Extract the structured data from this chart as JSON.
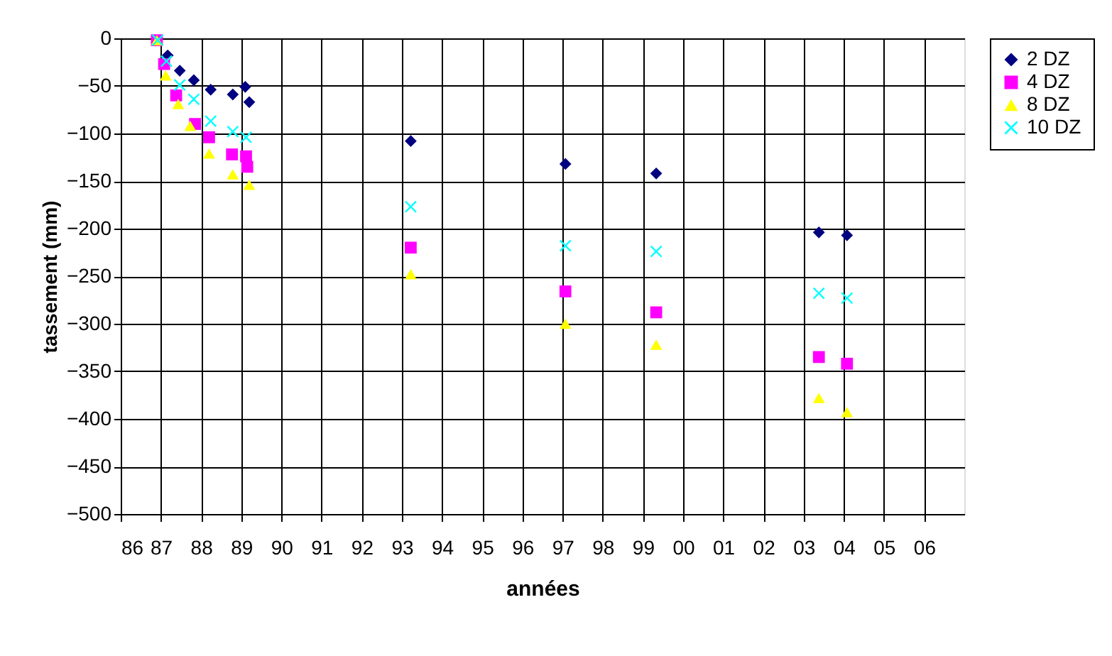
{
  "chart_data": {
    "type": "scatter",
    "xlabel": "années",
    "ylabel": "tassement (mm)",
    "xlim": [
      1986,
      2007
    ],
    "ylim": [
      -500,
      0
    ],
    "xticks": [
      {
        "value": 1986,
        "label": "86"
      },
      {
        "value": 1987,
        "label": "87"
      },
      {
        "value": 1988,
        "label": "88"
      },
      {
        "value": 1989,
        "label": "89"
      },
      {
        "value": 1990,
        "label": "90"
      },
      {
        "value": 1991,
        "label": "91"
      },
      {
        "value": 1992,
        "label": "92"
      },
      {
        "value": 1993,
        "label": "93"
      },
      {
        "value": 1994,
        "label": "94"
      },
      {
        "value": 1995,
        "label": "95"
      },
      {
        "value": 1996,
        "label": "96"
      },
      {
        "value": 1997,
        "label": "97"
      },
      {
        "value": 1998,
        "label": "98"
      },
      {
        "value": 1999,
        "label": "99"
      },
      {
        "value": 2000,
        "label": "00"
      },
      {
        "value": 2001,
        "label": "01"
      },
      {
        "value": 2002,
        "label": "02"
      },
      {
        "value": 2003,
        "label": "03"
      },
      {
        "value": 2004,
        "label": "04"
      },
      {
        "value": 2005,
        "label": "05"
      },
      {
        "value": 2006,
        "label": "06"
      }
    ],
    "yticks": [
      0,
      -50,
      -100,
      -150,
      -200,
      -250,
      -300,
      -350,
      -400,
      -450,
      -500
    ],
    "grid": true,
    "legend": "right",
    "series": [
      {
        "name": "2 DZ",
        "color": "#000080",
        "marker": "diamond",
        "x": [
          1987.17,
          1987.47,
          1987.82,
          1988.24,
          1988.79,
          1989.1,
          1989.2,
          1993.22,
          1997.07,
          1999.33,
          2003.38,
          2004.08
        ],
        "values": [
          -18,
          -34,
          -44,
          -54,
          -59,
          -51,
          -67,
          -108,
          -132,
          -142,
          -204,
          -207
        ]
      },
      {
        "name": "4 DZ",
        "color": "#ff00ff",
        "marker": "square",
        "x": [
          1986.9,
          1987.08,
          1987.38,
          1987.85,
          1988.2,
          1988.77,
          1989.12,
          1989.15,
          1993.22,
          1997.07,
          1999.33,
          2003.38,
          2004.08
        ],
        "values": [
          -2,
          -27,
          -60,
          -90,
          -104,
          -122,
          -124,
          -135,
          -220,
          -266,
          -288,
          -335,
          -342
        ]
      },
      {
        "name": "8 DZ",
        "color": "#ffff00",
        "marker": "triangle",
        "x": [
          1986.9,
          1987.12,
          1987.43,
          1987.73,
          1988.2,
          1988.79,
          1989.2,
          1993.22,
          1997.07,
          1999.33,
          2003.38,
          2004.08
        ],
        "values": [
          -2,
          -39,
          -69,
          -92,
          -121,
          -143,
          -154,
          -248,
          -300,
          -322,
          -378,
          -393
        ]
      },
      {
        "name": "10 DZ",
        "color": "#00ffff",
        "marker": "cross",
        "x": [
          1986.92,
          1987.14,
          1987.47,
          1987.82,
          1988.24,
          1988.79,
          1989.12,
          1993.22,
          1997.07,
          1999.33,
          2003.38,
          2004.08
        ],
        "values": [
          -2,
          -24,
          -49,
          -64,
          -87,
          -98,
          -104,
          -177,
          -218,
          -224,
          -268,
          -273
        ]
      }
    ]
  }
}
